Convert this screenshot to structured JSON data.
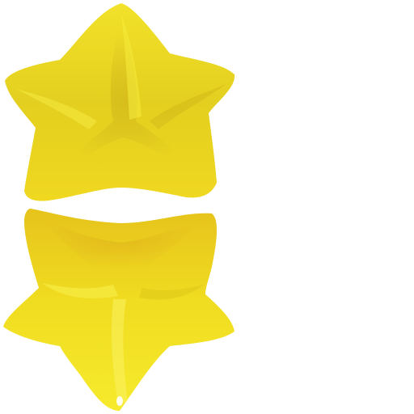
{
  "scene": {
    "background": "#ffffff",
    "objects": [
      {
        "name": "upper-star-piece",
        "fill": "#e6d41e",
        "highlight": "#f3e42a",
        "shade": "#d2b81c"
      },
      {
        "name": "lower-star-piece",
        "fill": "#efe21f",
        "highlight": "#f7ee3a",
        "shade": "#d8c21a"
      }
    ]
  }
}
